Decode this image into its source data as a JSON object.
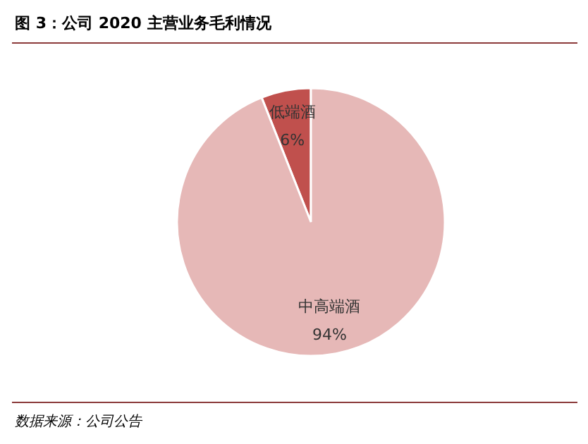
{
  "chart_data": {
    "type": "pie",
    "title": "图 3：公司 2020 主营业务毛利情况",
    "categories": [
      "低端酒",
      "中高端酒"
    ],
    "values": [
      6,
      94
    ],
    "colors": [
      "#c0504d",
      "#e6b8b7"
    ],
    "value_labels": [
      "6%",
      "94%"
    ],
    "annotations": [
      "数据来源：公司公告"
    ]
  }
}
